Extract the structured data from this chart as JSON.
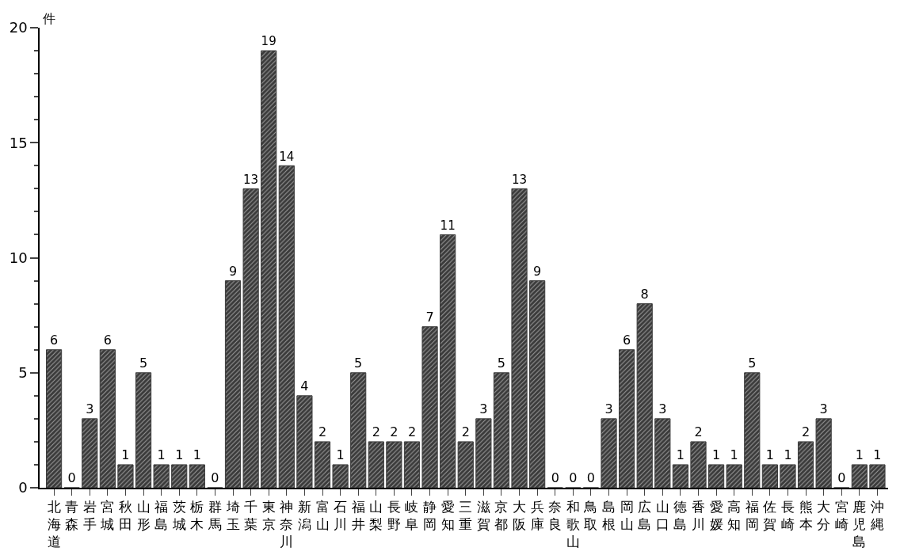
{
  "chart_data": {
    "type": "bar",
    "ylabel": "件",
    "categories": [
      "北海道",
      "青森",
      "岩手",
      "宮城",
      "秋田",
      "山形",
      "福島",
      "茨城",
      "栃木",
      "群馬",
      "埼玉",
      "千葉",
      "東京",
      "神奈川",
      "新潟",
      "富山",
      "石川",
      "福井",
      "山梨",
      "長野",
      "岐阜",
      "静岡",
      "愛知",
      "三重",
      "滋賀",
      "京都",
      "大阪",
      "兵庫",
      "奈良",
      "和歌山",
      "鳥取",
      "島根",
      "岡山",
      "広島",
      "山口",
      "徳島",
      "香川",
      "愛媛",
      "高知",
      "福岡",
      "佐賀",
      "長崎",
      "熊本",
      "大分",
      "宮崎",
      "鹿児島",
      "沖縄"
    ],
    "values": [
      6,
      0,
      3,
      6,
      1,
      5,
      1,
      1,
      1,
      0,
      9,
      13,
      19,
      14,
      4,
      2,
      1,
      5,
      2,
      2,
      2,
      7,
      11,
      2,
      3,
      5,
      13,
      9,
      0,
      0,
      0,
      3,
      6,
      8,
      3,
      1,
      2,
      1,
      1,
      5,
      1,
      1,
      2,
      3,
      0,
      1,
      1
    ],
    "color": "#3a3a3a",
    "ylim": [
      0,
      20
    ],
    "yticks": [
      0,
      {
        "value": 1,
        "label": null
      },
      {
        "value": 2,
        "label": null
      },
      {
        "value": 3,
        "label": null
      },
      {
        "value": 4,
        "label": null
      },
      5,
      {
        "value": 6,
        "label": null
      },
      {
        "value": 7,
        "label": null
      },
      {
        "value": 8,
        "label": null
      },
      {
        "value": 9,
        "label": null
      },
      10,
      {
        "value": 11,
        "label": null
      },
      {
        "value": 12,
        "label": null
      },
      {
        "value": 13,
        "label": null
      },
      {
        "value": 14,
        "label": null
      },
      15,
      {
        "value": 16,
        "label": null
      },
      {
        "value": 17,
        "label": null
      },
      {
        "value": 18,
        "label": null
      },
      {
        "value": 19,
        "label": null
      },
      20
    ],
    "data_labels": true
  }
}
